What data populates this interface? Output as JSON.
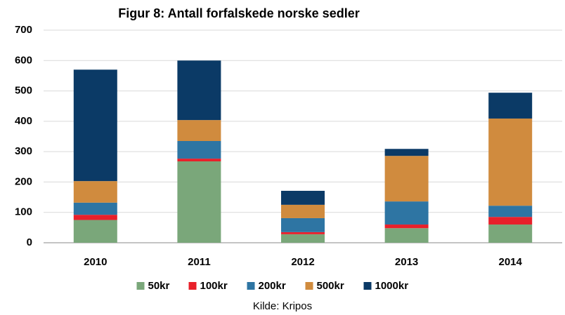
{
  "chart_data": {
    "type": "stacked-bar",
    "title": "Figur 8: Antall forfalskede norske sedler",
    "categories": [
      "2010",
      "2011",
      "2012",
      "2013",
      "2014"
    ],
    "series": [
      {
        "name": "50kr",
        "color": "#7aa77a",
        "values": [
          75,
          268,
          28,
          48,
          60
        ]
      },
      {
        "name": "100kr",
        "color": "#e8202a",
        "values": [
          17,
          9,
          7,
          12,
          25
        ]
      },
      {
        "name": "200kr",
        "color": "#2e75a3",
        "values": [
          40,
          58,
          46,
          76,
          37
        ]
      },
      {
        "name": "500kr",
        "color": "#d08b3e",
        "values": [
          71,
          69,
          44,
          150,
          287
        ]
      },
      {
        "name": "1000kr",
        "color": "#0b3a66",
        "values": [
          367,
          196,
          46,
          23,
          85
        ]
      }
    ],
    "ylim": [
      0,
      700
    ],
    "yticks": [
      0,
      100,
      200,
      300,
      400,
      500,
      600,
      700
    ],
    "grid": true,
    "legend": "bottom",
    "source": "Kilde: Kripos"
  }
}
